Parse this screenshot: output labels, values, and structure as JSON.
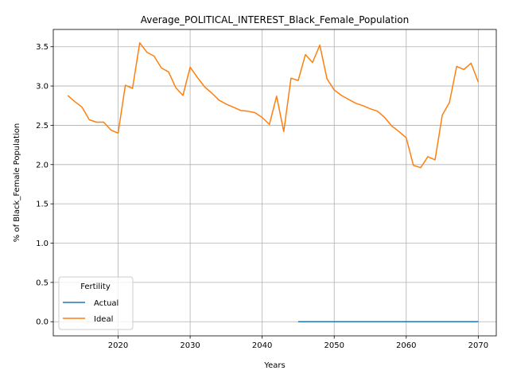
{
  "chart_data": {
    "type": "line",
    "title": "Average_POLITICAL_INTEREST_Black_Female_Population",
    "xlabel": "Years",
    "ylabel": "% of Black_Female Population",
    "xlim": [
      2011,
      2072.5
    ],
    "ylim": [
      -0.18,
      3.72
    ],
    "xticks": [
      2020,
      2030,
      2040,
      2050,
      2060,
      2070
    ],
    "yticks": [
      0.0,
      0.5,
      1.0,
      1.5,
      2.0,
      2.5,
      3.0,
      3.5
    ],
    "xtick_labels": [
      "2020",
      "2030",
      "2040",
      "2050",
      "2060",
      "2070"
    ],
    "ytick_labels": [
      "0.0",
      "0.5",
      "1.0",
      "1.5",
      "2.0",
      "2.5",
      "3.0",
      "3.5"
    ],
    "grid": true,
    "legend": {
      "title": "Fertility",
      "placement": "lower-left"
    },
    "series": [
      {
        "name": "Actual",
        "color": "#1f77b4",
        "x": [
          2045,
          2046,
          2047,
          2048,
          2049,
          2050,
          2051,
          2052,
          2053,
          2054,
          2055,
          2056,
          2057,
          2058,
          2059,
          2060,
          2061,
          2062,
          2063,
          2064,
          2065,
          2066,
          2067,
          2068,
          2069,
          2070
        ],
        "y": [
          0,
          0,
          0,
          0,
          0,
          0,
          0,
          0,
          0,
          0,
          0,
          0,
          0,
          0,
          0,
          0,
          0,
          0,
          0,
          0,
          0,
          0,
          0,
          0,
          0,
          0
        ]
      },
      {
        "name": "Ideal",
        "color": "#ff7f0e",
        "x": [
          2013,
          2014,
          2015,
          2016,
          2017,
          2018,
          2019,
          2020,
          2021,
          2022,
          2023,
          2024,
          2025,
          2026,
          2027,
          2028,
          2029,
          2030,
          2031,
          2032,
          2033,
          2034,
          2035,
          2036,
          2037,
          2038,
          2039,
          2040,
          2041,
          2042,
          2043,
          2044,
          2045,
          2046,
          2047,
          2048,
          2049,
          2050,
          2051,
          2052,
          2053,
          2054,
          2055,
          2056,
          2057,
          2058,
          2059,
          2060,
          2061,
          2062,
          2063,
          2064,
          2065,
          2066,
          2067,
          2068,
          2069,
          2070
        ],
        "y": [
          2.88,
          2.8,
          2.73,
          2.57,
          2.54,
          2.54,
          2.44,
          2.4,
          3.01,
          2.97,
          3.55,
          3.43,
          3.38,
          3.23,
          3.18,
          2.98,
          2.88,
          3.24,
          3.11,
          2.99,
          2.91,
          2.82,
          2.77,
          2.73,
          2.69,
          2.68,
          2.66,
          2.6,
          2.51,
          2.87,
          2.42,
          3.1,
          3.07,
          3.4,
          3.3,
          3.52,
          3.09,
          2.95,
          2.88,
          2.83,
          2.78,
          2.75,
          2.71,
          2.68,
          2.6,
          2.49,
          2.42,
          2.34,
          1.99,
          1.96,
          2.1,
          2.06,
          2.63,
          2.79,
          3.25,
          3.21,
          3.29,
          3.05
        ]
      }
    ]
  }
}
